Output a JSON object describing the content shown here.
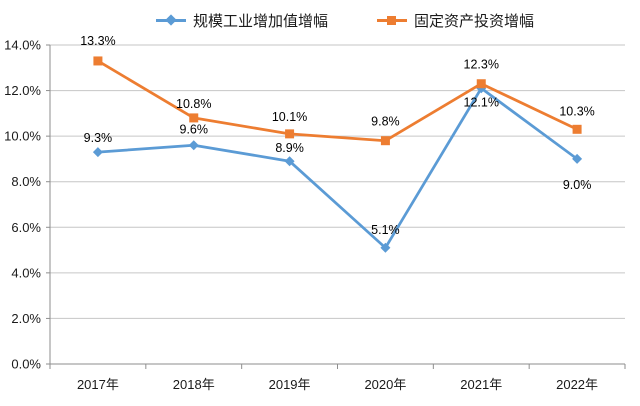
{
  "chart_data": {
    "type": "line",
    "title": "",
    "categories": [
      "2017年",
      "2018年",
      "2019年",
      "2020年",
      "2021年",
      "2022年"
    ],
    "series": [
      {
        "name": "规模工业增加值增幅",
        "color": "#5B9BD5",
        "marker": "diamond",
        "values": [
          9.3,
          9.6,
          8.9,
          5.1,
          12.1,
          9.0
        ],
        "labels": [
          "9.3%",
          "9.6%",
          "8.9%",
          "5.1%",
          "12.1%",
          "9.0%"
        ],
        "label_dy": [
          -10,
          -12,
          -9,
          -14,
          18,
          30
        ]
      },
      {
        "name": "固定资产投资增幅",
        "color": "#ED7D31",
        "marker": "square",
        "values": [
          13.3,
          10.8,
          10.1,
          9.8,
          12.3,
          10.3
        ],
        "labels": [
          "13.3%",
          "10.8%",
          "10.1%",
          "9.8%",
          "12.3%",
          "10.3%"
        ],
        "label_dy": [
          -16,
          -10,
          -13,
          -15,
          -15,
          -14
        ]
      }
    ],
    "y_axis": {
      "min": 0,
      "max": 14,
      "step": 2,
      "tick_labels": [
        "0.0%",
        "2.0%",
        "4.0%",
        "6.0%",
        "8.0%",
        "10.0%",
        "12.0%",
        "14.0%"
      ]
    },
    "x_axis": {
      "label": ""
    },
    "grid": true,
    "legend_position": "top",
    "colors": {
      "gridline": "#C6C6C6",
      "axis": "#8E8E8E",
      "tick_text": "#1a1a1a",
      "data_label": "#000000",
      "background": "#FFFFFF"
    }
  }
}
